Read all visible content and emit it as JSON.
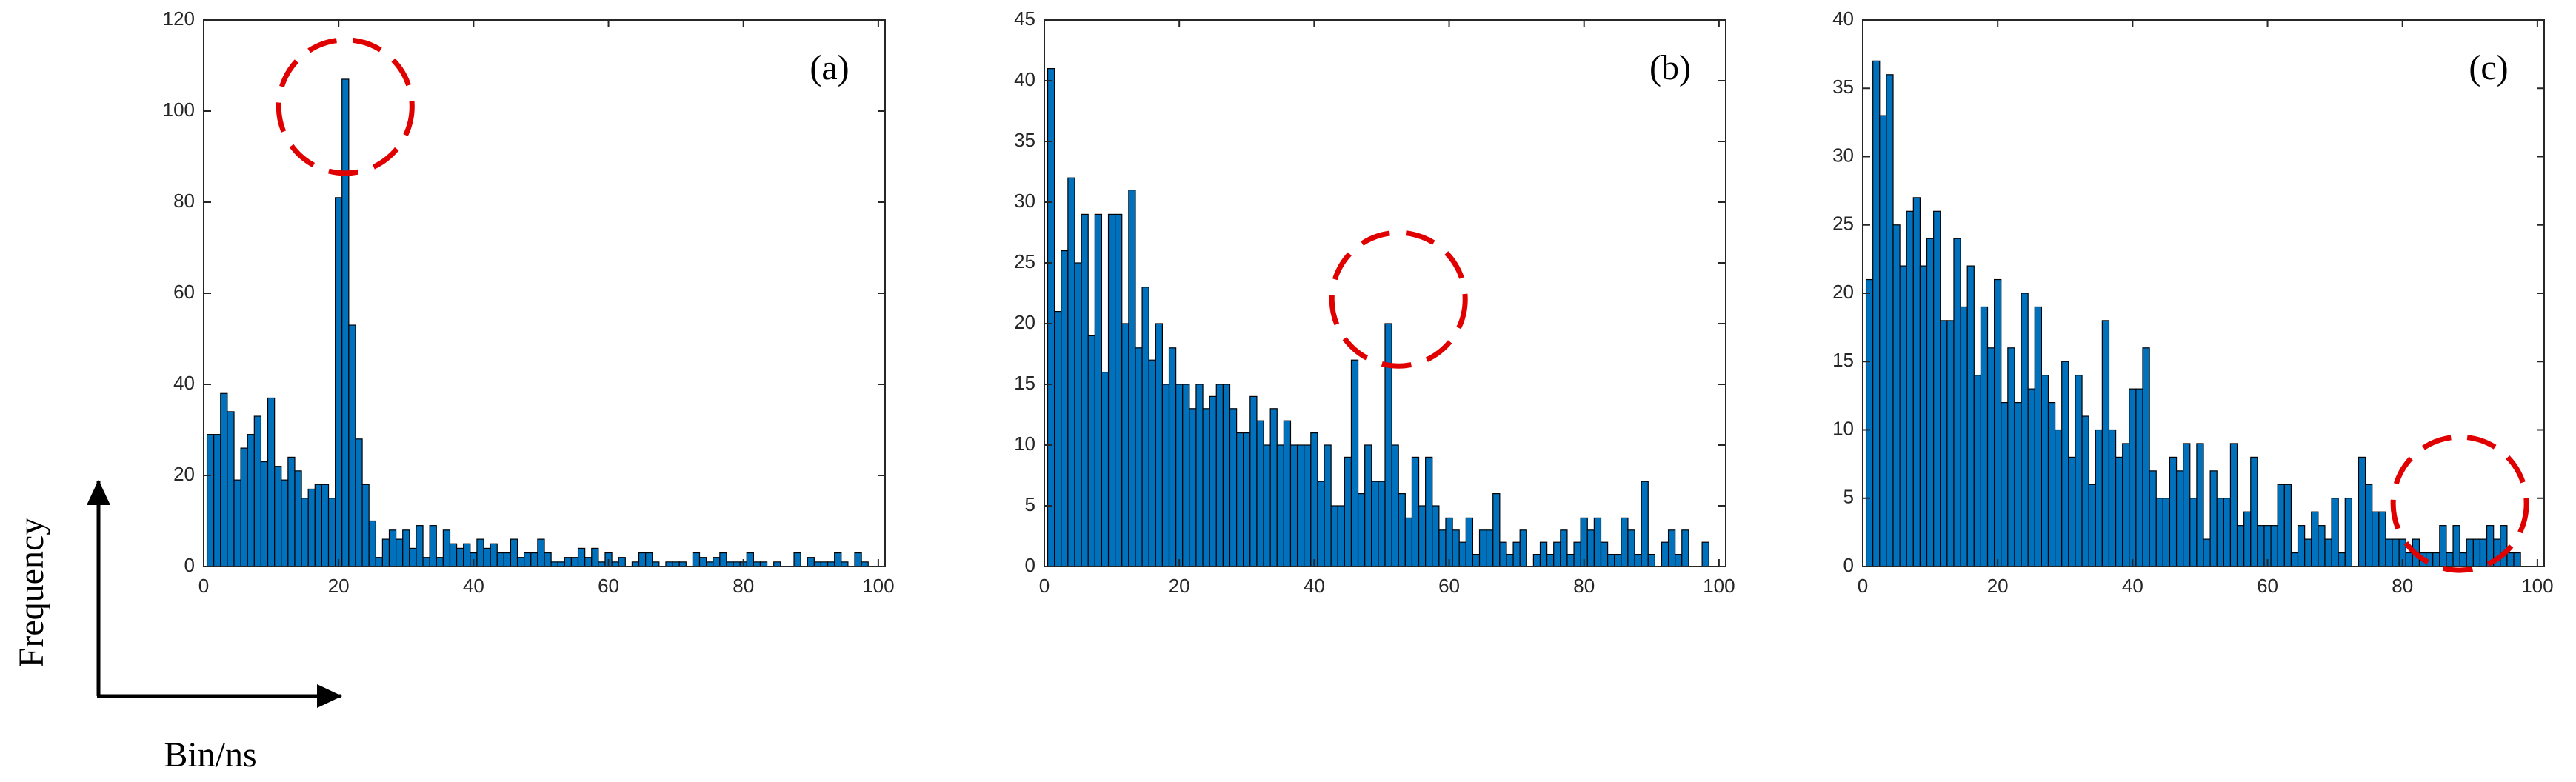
{
  "chart_data": [
    {
      "type": "bar",
      "annotation": "(a)",
      "color": "#0072bd",
      "x": [
        1,
        2,
        3,
        4,
        5,
        6,
        7,
        8,
        9,
        10,
        11,
        12,
        13,
        14,
        15,
        16,
        17,
        18,
        19,
        20,
        21,
        22,
        23,
        24,
        25,
        26,
        27,
        28,
        29,
        30,
        31,
        32,
        33,
        34,
        35,
        36,
        37,
        38,
        39,
        40,
        41,
        42,
        43,
        44,
        45,
        46,
        47,
        48,
        49,
        50,
        51,
        52,
        53,
        54,
        55,
        56,
        57,
        58,
        59,
        60,
        61,
        62,
        63,
        64,
        65,
        66,
        67,
        68,
        69,
        70,
        71,
        72,
        73,
        74,
        75,
        76,
        77,
        78,
        79,
        80,
        81,
        82,
        83,
        84,
        85,
        86,
        87,
        88,
        89,
        90,
        91,
        92,
        93,
        94,
        95,
        96,
        97,
        98,
        99
      ],
      "values": [
        29,
        29,
        38,
        34,
        19,
        26,
        29,
        33,
        23,
        37,
        22,
        19,
        24,
        21,
        15,
        17,
        18,
        18,
        15,
        81,
        107,
        53,
        28,
        18,
        10,
        2,
        6,
        8,
        6,
        8,
        4,
        9,
        2,
        9,
        2,
        8,
        5,
        4,
        5,
        3,
        6,
        4,
        5,
        3,
        3,
        6,
        2,
        3,
        3,
        6,
        3,
        1,
        1,
        2,
        2,
        4,
        2,
        4,
        1,
        3,
        1,
        2,
        0,
        1,
        3,
        3,
        1,
        0,
        1,
        1,
        1,
        0,
        3,
        2,
        1,
        2,
        3,
        1,
        1,
        1,
        3,
        1,
        1,
        0,
        1,
        0,
        0,
        3,
        0,
        2,
        1,
        1,
        1,
        3,
        1,
        0,
        3,
        1,
        0
      ],
      "xlim": [
        0,
        101
      ],
      "xticks": [
        0,
        20,
        40,
        60,
        80,
        100
      ],
      "ylim": [
        0,
        120
      ],
      "yticks": [
        0,
        20,
        40,
        60,
        80,
        100,
        120
      ]
    },
    {
      "type": "bar",
      "annotation": "(b)",
      "color": "#0072bd",
      "x": [
        1,
        2,
        3,
        4,
        5,
        6,
        7,
        8,
        9,
        10,
        11,
        12,
        13,
        14,
        15,
        16,
        17,
        18,
        19,
        20,
        21,
        22,
        23,
        24,
        25,
        26,
        27,
        28,
        29,
        30,
        31,
        32,
        33,
        34,
        35,
        36,
        37,
        38,
        39,
        40,
        41,
        42,
        43,
        44,
        45,
        46,
        47,
        48,
        49,
        50,
        51,
        52,
        53,
        54,
        55,
        56,
        57,
        58,
        59,
        60,
        61,
        62,
        63,
        64,
        65,
        66,
        67,
        68,
        69,
        70,
        71,
        72,
        73,
        74,
        75,
        76,
        77,
        78,
        79,
        80,
        81,
        82,
        83,
        84,
        85,
        86,
        87,
        88,
        89,
        90,
        91,
        92,
        93,
        94,
        95,
        96,
        97,
        98
      ],
      "values": [
        41,
        21,
        26,
        32,
        25,
        29,
        19,
        29,
        16,
        29,
        29,
        20,
        31,
        18,
        23,
        17,
        20,
        15,
        18,
        15,
        15,
        13,
        15,
        13,
        14,
        15,
        15,
        13,
        11,
        11,
        14,
        12,
        10,
        13,
        10,
        12,
        10,
        10,
        10,
        11,
        7,
        10,
        5,
        5,
        9,
        17,
        6,
        10,
        7,
        7,
        20,
        10,
        6,
        4,
        9,
        5,
        9,
        5,
        3,
        4,
        3,
        2,
        4,
        1,
        3,
        3,
        6,
        2,
        1,
        2,
        3,
        0,
        1,
        2,
        1,
        2,
        3,
        1,
        2,
        4,
        3,
        4,
        2,
        1,
        1,
        4,
        3,
        1,
        7,
        1,
        0,
        2,
        3,
        1,
        3,
        0,
        0,
        2
      ],
      "xlim": [
        0,
        101
      ],
      "xticks": [
        0,
        20,
        40,
        60,
        80,
        100
      ],
      "ylim": [
        0,
        45
      ],
      "yticks": [
        0,
        5,
        10,
        15,
        20,
        25,
        30,
        35,
        40,
        45
      ]
    },
    {
      "type": "bar",
      "annotation": "(c)",
      "color": "#0072bd",
      "x": [
        1,
        2,
        3,
        4,
        5,
        6,
        7,
        8,
        9,
        10,
        11,
        12,
        13,
        14,
        15,
        16,
        17,
        18,
        19,
        20,
        21,
        22,
        23,
        24,
        25,
        26,
        27,
        28,
        29,
        30,
        31,
        32,
        33,
        34,
        35,
        36,
        37,
        38,
        39,
        40,
        41,
        42,
        43,
        44,
        45,
        46,
        47,
        48,
        49,
        50,
        51,
        52,
        53,
        54,
        55,
        56,
        57,
        58,
        59,
        60,
        61,
        62,
        63,
        64,
        65,
        66,
        67,
        68,
        69,
        70,
        71,
        72,
        73,
        74,
        75,
        76,
        77,
        78,
        79,
        80,
        81,
        82,
        83,
        84,
        85,
        86,
        87,
        88,
        89,
        90,
        91,
        92,
        93,
        94,
        95,
        96,
        97
      ],
      "values": [
        21,
        37,
        33,
        36,
        25,
        22,
        26,
        27,
        22,
        24,
        26,
        18,
        18,
        24,
        19,
        22,
        14,
        19,
        16,
        21,
        12,
        16,
        12,
        20,
        13,
        19,
        14,
        12,
        10,
        15,
        8,
        14,
        11,
        6,
        10,
        18,
        10,
        8,
        9,
        13,
        13,
        16,
        7,
        5,
        5,
        8,
        7,
        9,
        5,
        9,
        2,
        7,
        5,
        5,
        9,
        3,
        4,
        8,
        3,
        3,
        3,
        6,
        6,
        1,
        3,
        2,
        4,
        3,
        2,
        5,
        1,
        5,
        0,
        8,
        6,
        4,
        4,
        2,
        2,
        2,
        1,
        2,
        1,
        1,
        1,
        3,
        1,
        3,
        1,
        2,
        2,
        2,
        3,
        2,
        3,
        1,
        1
      ],
      "xlim": [
        0,
        101
      ],
      "xticks": [
        0,
        20,
        40,
        60,
        80,
        100
      ],
      "ylim": [
        0,
        40
      ],
      "yticks": [
        0,
        5,
        10,
        15,
        20,
        25,
        30,
        35,
        40
      ]
    }
  ],
  "axis_labels": {
    "y": "Frequency",
    "x": "Bin/ns"
  }
}
